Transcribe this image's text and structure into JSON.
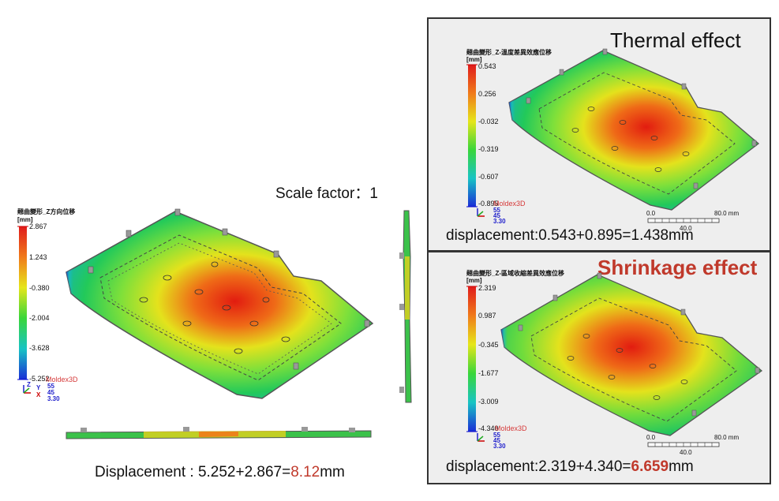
{
  "left": {
    "legend_title": "翹曲變形_Z方向位移",
    "unit": "[mm]",
    "ticks": [
      "2.867",
      "1.243",
      "-0.380",
      "-2.004",
      "-3.628",
      "-5.252"
    ],
    "brand": "Moldex3D",
    "axes": [
      "Z",
      "Y",
      "X"
    ],
    "view_values": [
      "55",
      "45",
      "3.30"
    ],
    "scale_label": "Scale factor：1",
    "caption_prefix": "Displacement : 5.252+2.867=",
    "caption_value": "8.12",
    "caption_suffix": "mm"
  },
  "thermal": {
    "heading": "Thermal effect",
    "legend_title": "翹曲變形_Z-溫度差異效應位移",
    "unit": "[mm]",
    "ticks": [
      "0.543",
      "0.256",
      "-0.032",
      "-0.319",
      "-0.607",
      "-0.895"
    ],
    "brand": "Moldex3D",
    "view_values": [
      "55",
      "45",
      "3.30"
    ],
    "scale_ticks": [
      "0.0",
      "40.0",
      "80.0 mm"
    ],
    "caption": "displacement:0.543+0.895=1.438mm"
  },
  "shrinkage": {
    "heading": "Shrinkage effect",
    "legend_title": "翹曲變形_Z-區域收縮差異效應位移",
    "unit": "[mm]",
    "ticks": [
      "2.319",
      "0.987",
      "-0.345",
      "-1.677",
      "-3.009",
      "-4.340"
    ],
    "brand": "Moldex3D",
    "view_values": [
      "55",
      "45",
      "3.30"
    ],
    "scale_ticks": [
      "0.0",
      "40.0",
      "80.0 mm"
    ],
    "caption_prefix": "displacement:2.319+4.340=",
    "caption_value": "6.659",
    "caption_suffix": "mm"
  },
  "colors": {
    "accent_red": "#c0392b",
    "panel_bg": "#eeeeee"
  }
}
